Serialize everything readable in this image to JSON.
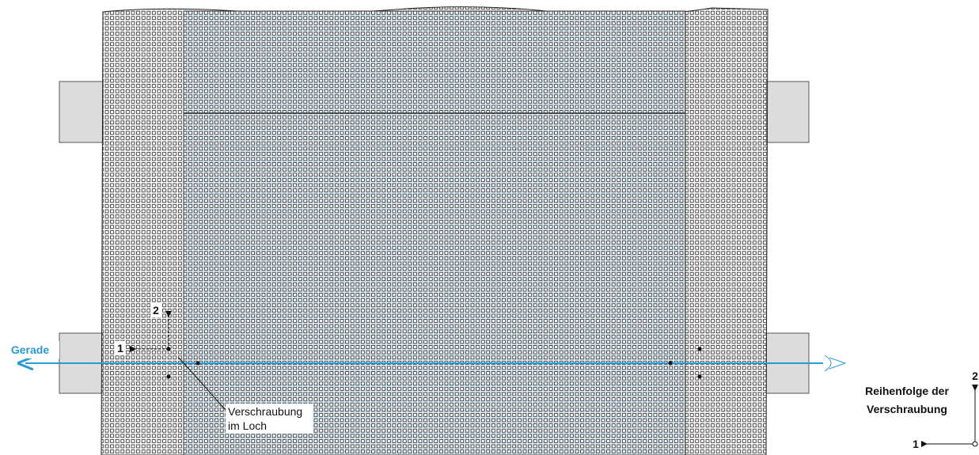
{
  "labels": {
    "line": "Gerade",
    "callout": [
      "Verschraubung",
      "im Loch"
    ],
    "order_marks": [
      "1",
      "2"
    ],
    "legend": {
      "title": [
        "Reihenfolge der",
        "Verschraubung"
      ],
      "marks": [
        "1",
        "2"
      ]
    }
  }
}
